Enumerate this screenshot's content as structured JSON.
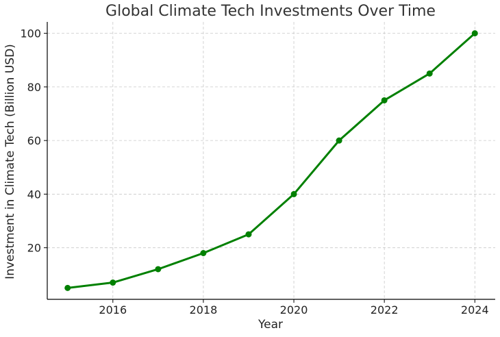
{
  "chart_data": {
    "type": "line",
    "title": "Global Climate Tech Investments Over Time",
    "xlabel": "Year",
    "ylabel": "Investment in Climate Tech (Billion USD)",
    "x": [
      2015,
      2016,
      2017,
      2018,
      2019,
      2020,
      2021,
      2022,
      2023,
      2024
    ],
    "series": [
      {
        "values": [
          5,
          7,
          12,
          18,
          25,
          40,
          60,
          75,
          85,
          100
        ],
        "color": "#008000",
        "marker": "circle"
      }
    ],
    "xticks": [
      2016,
      2018,
      2020,
      2022,
      2024
    ],
    "yticks": [
      20,
      40,
      60,
      80,
      100
    ],
    "xlim": [
      2014.55,
      2024.45
    ],
    "ylim": [
      0.75,
      104.25
    ],
    "grid": true,
    "legend": "none"
  }
}
